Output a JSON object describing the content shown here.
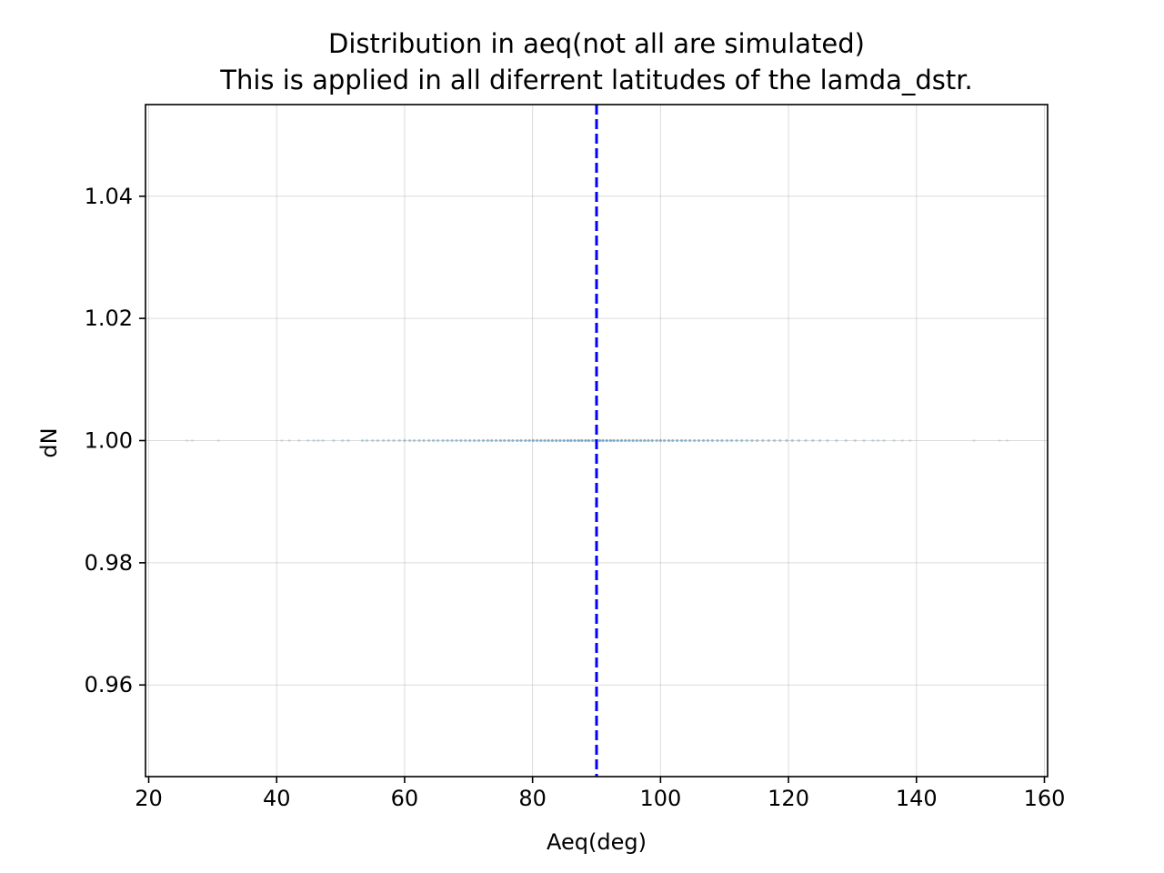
{
  "chart_data": {
    "type": "scatter",
    "title": "Distribution in aeq(not all are simulated)",
    "subtitle": "This is applied in all diferrent latitudes of the lamda_dstr.",
    "xlabel": "Aeq(deg)",
    "ylabel": "dN",
    "xlim": [
      19.5,
      160.5
    ],
    "ylim": [
      0.945,
      1.055
    ],
    "xticks": [
      20,
      40,
      60,
      80,
      100,
      120,
      140,
      160
    ],
    "yticks": [
      0.96,
      0.98,
      1.0,
      1.02,
      1.04
    ],
    "xtick_labels": [
      "20",
      "40",
      "60",
      "80",
      "100",
      "120",
      "140",
      "160"
    ],
    "ytick_labels": [
      "0.96",
      "0.98",
      "1.00",
      "1.02",
      "1.04"
    ],
    "grid": true,
    "series": [
      {
        "color": "#1f77b4",
        "y": 1.0,
        "x": [
          26.0,
          26.8,
          30.9,
          40.8,
          42.0,
          43.5,
          44.9,
          45.8,
          46.5,
          47.2,
          48.9,
          50.3,
          51.2,
          53.4,
          54.1,
          55.0,
          55.8,
          56.7,
          57.5,
          58.3,
          59.2,
          60.0,
          60.8,
          61.5,
          62.3,
          63.0,
          63.8,
          64.5,
          65.2,
          66.0,
          66.7,
          67.4,
          68.1,
          68.8,
          69.5,
          70.2,
          70.9,
          71.6,
          72.3,
          73.0,
          73.6,
          74.3,
          75.0,
          75.6,
          76.3,
          76.9,
          77.6,
          78.2,
          78.9,
          79.5,
          80.1,
          80.7,
          81.3,
          81.9,
          82.5,
          83.1,
          83.7,
          84.3,
          84.9,
          85.5,
          86.0,
          86.6,
          87.2,
          87.7,
          88.3,
          88.8,
          89.4,
          89.9,
          90.5,
          91.0,
          91.6,
          92.2,
          92.7,
          93.3,
          93.9,
          94.5,
          95.1,
          95.7,
          96.3,
          96.9,
          97.5,
          98.1,
          98.7,
          99.4,
          100.0,
          100.6,
          101.3,
          101.9,
          102.6,
          103.3,
          103.9,
          104.6,
          105.3,
          106.0,
          106.7,
          107.4,
          108.1,
          108.9,
          109.6,
          110.4,
          111.1,
          111.9,
          112.7,
          113.5,
          114.3,
          115.1,
          116.0,
          116.9,
          117.8,
          118.7,
          119.7,
          120.6,
          121.6,
          122.7,
          123.8,
          124.9,
          126.1,
          127.5,
          129.0,
          130.4,
          131.8,
          133.2,
          134.0,
          134.9,
          136.5,
          137.8,
          139.0,
          149.0,
          153.0,
          154.2
        ]
      }
    ],
    "reference_line": {
      "orientation": "vertical",
      "x": 90,
      "color": "#0000ff",
      "style": "dashed"
    }
  }
}
